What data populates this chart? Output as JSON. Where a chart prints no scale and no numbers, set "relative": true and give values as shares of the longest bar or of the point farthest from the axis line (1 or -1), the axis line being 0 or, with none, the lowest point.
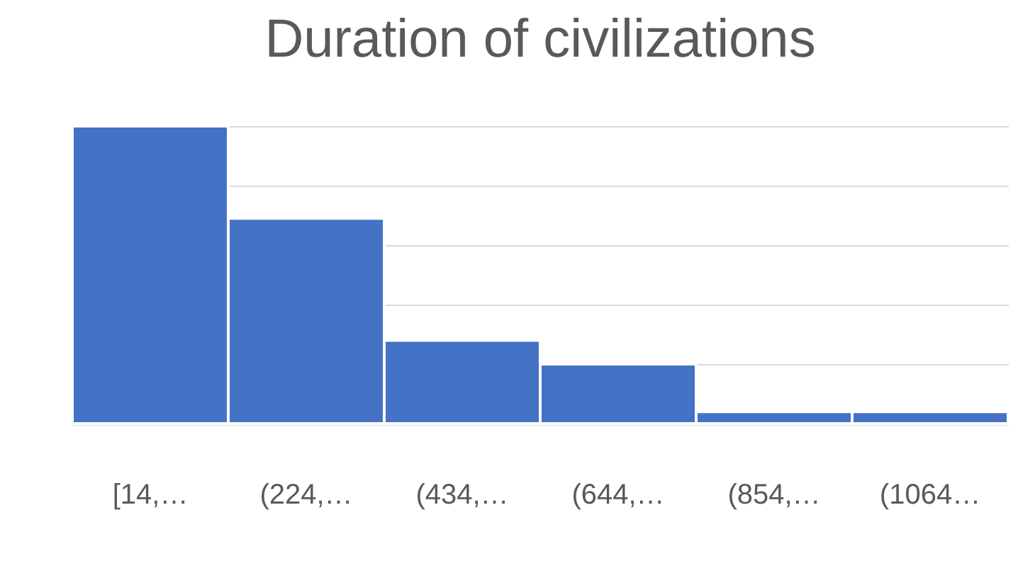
{
  "chart_data": {
    "type": "bar",
    "title": "Duration of civilizations",
    "categories": [
      "[14,…",
      "(224,…",
      "(434,…",
      "(644,…",
      "(854,…",
      "(1064…"
    ],
    "values": [
      1,
      0.69,
      0.28,
      0.2,
      0.04,
      0.04
    ],
    "color": "#4472c4",
    "relative": true,
    "grid": "y"
  }
}
